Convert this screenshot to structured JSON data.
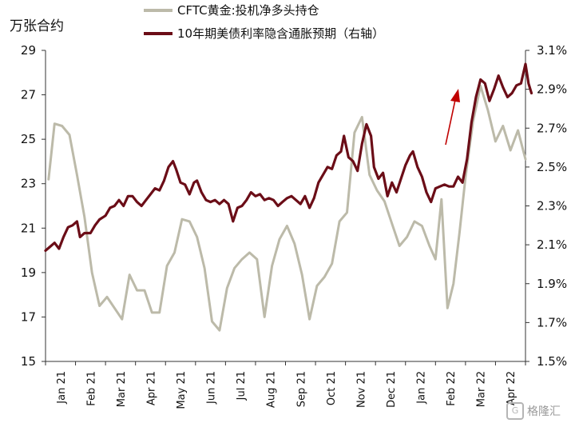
{
  "left_unit": "万张合约",
  "watermark": "格隆汇",
  "legend": [
    {
      "label": "CFTC黄金:投机净多头持仓",
      "color": "#bcbaa9"
    },
    {
      "label": "10年期美债利率隐含通胀预期（右轴）",
      "color": "#6b0d17"
    }
  ],
  "chart_data": {
    "type": "line",
    "x_categories": [
      "Jan 21",
      "Feb 21",
      "Mar 21",
      "Apr 21",
      "May 21",
      "Jun 21",
      "Jul 21",
      "Aug 21",
      "Sep 21",
      "Oct 21",
      "Nov 21",
      "Dec 21",
      "Jan 22",
      "Feb 22",
      "Mar 22",
      "Apr 22"
    ],
    "y_left": {
      "ticks": [
        "15",
        "17",
        "19",
        "21",
        "23",
        "25",
        "27",
        "29"
      ],
      "range": [
        15,
        29
      ]
    },
    "y_right": {
      "ticks": [
        "1.5%",
        "1.7%",
        "1.9%",
        "2.1%",
        "2.3%",
        "2.5%",
        "2.7%",
        "2.9%",
        "3.1%"
      ],
      "range": [
        1.5,
        3.1
      ]
    },
    "series": [
      {
        "name": "CFTC黄金:投机净多头持仓",
        "axis": "left",
        "color": "#bcbaa9",
        "points": [
          [
            0.1,
            23.2
          ],
          [
            0.3,
            25.7
          ],
          [
            0.55,
            25.6
          ],
          [
            0.8,
            25.2
          ],
          [
            1.05,
            23.4
          ],
          [
            1.3,
            21.5
          ],
          [
            1.55,
            19.0
          ],
          [
            1.8,
            17.5
          ],
          [
            2.05,
            17.9
          ],
          [
            2.3,
            17.4
          ],
          [
            2.55,
            16.9
          ],
          [
            2.8,
            18.9
          ],
          [
            3.05,
            18.2
          ],
          [
            3.3,
            18.2
          ],
          [
            3.55,
            17.2
          ],
          [
            3.8,
            17.2
          ],
          [
            4.05,
            19.3
          ],
          [
            4.3,
            19.9
          ],
          [
            4.55,
            21.4
          ],
          [
            4.8,
            21.3
          ],
          [
            5.05,
            20.6
          ],
          [
            5.3,
            19.2
          ],
          [
            5.55,
            16.8
          ],
          [
            5.8,
            16.4
          ],
          [
            6.05,
            18.3
          ],
          [
            6.3,
            19.2
          ],
          [
            6.55,
            19.6
          ],
          [
            6.8,
            19.9
          ],
          [
            7.05,
            19.6
          ],
          [
            7.3,
            17.0
          ],
          [
            7.55,
            19.3
          ],
          [
            7.8,
            20.5
          ],
          [
            8.05,
            21.1
          ],
          [
            8.3,
            20.3
          ],
          [
            8.55,
            18.9
          ],
          [
            8.8,
            16.9
          ],
          [
            9.05,
            18.4
          ],
          [
            9.3,
            18.8
          ],
          [
            9.55,
            19.4
          ],
          [
            9.8,
            21.3
          ],
          [
            10.05,
            21.7
          ],
          [
            10.3,
            25.3
          ],
          [
            10.55,
            26.0
          ],
          [
            10.8,
            23.4
          ],
          [
            11.05,
            22.7
          ],
          [
            11.3,
            22.2
          ],
          [
            11.55,
            21.2
          ],
          [
            11.8,
            20.2
          ],
          [
            12.05,
            20.6
          ],
          [
            12.3,
            21.3
          ],
          [
            12.55,
            21.1
          ],
          [
            12.8,
            20.2
          ],
          [
            13.0,
            19.6
          ],
          [
            13.2,
            22.3
          ],
          [
            13.4,
            17.4
          ],
          [
            13.6,
            18.5
          ],
          [
            13.8,
            20.8
          ],
          [
            14.0,
            23.3
          ],
          [
            14.25,
            25.8
          ],
          [
            14.5,
            27.4
          ],
          [
            14.75,
            26.3
          ],
          [
            15.0,
            24.9
          ],
          [
            15.25,
            25.6
          ],
          [
            15.5,
            24.5
          ],
          [
            15.75,
            25.4
          ],
          [
            16.0,
            24.1
          ]
        ]
      },
      {
        "name": "10年期美债利率隐含通胀预期（右轴）",
        "axis": "right",
        "color": "#6b0d17",
        "points": [
          [
            0.0,
            2.07
          ],
          [
            0.15,
            2.09
          ],
          [
            0.3,
            2.11
          ],
          [
            0.45,
            2.08
          ],
          [
            0.6,
            2.14
          ],
          [
            0.75,
            2.19
          ],
          [
            0.9,
            2.2
          ],
          [
            1.05,
            2.22
          ],
          [
            1.15,
            2.14
          ],
          [
            1.3,
            2.16
          ],
          [
            1.5,
            2.16
          ],
          [
            1.65,
            2.2
          ],
          [
            1.8,
            2.23
          ],
          [
            2.0,
            2.25
          ],
          [
            2.15,
            2.29
          ],
          [
            2.3,
            2.3
          ],
          [
            2.45,
            2.33
          ],
          [
            2.6,
            2.3
          ],
          [
            2.75,
            2.35
          ],
          [
            2.9,
            2.35
          ],
          [
            3.05,
            2.32
          ],
          [
            3.2,
            2.3
          ],
          [
            3.35,
            2.33
          ],
          [
            3.5,
            2.36
          ],
          [
            3.65,
            2.39
          ],
          [
            3.8,
            2.38
          ],
          [
            3.95,
            2.43
          ],
          [
            4.1,
            2.5
          ],
          [
            4.25,
            2.53
          ],
          [
            4.35,
            2.49
          ],
          [
            4.5,
            2.42
          ],
          [
            4.65,
            2.41
          ],
          [
            4.8,
            2.36
          ],
          [
            4.95,
            2.42
          ],
          [
            5.05,
            2.43
          ],
          [
            5.2,
            2.37
          ],
          [
            5.35,
            2.33
          ],
          [
            5.5,
            2.32
          ],
          [
            5.65,
            2.33
          ],
          [
            5.8,
            2.31
          ],
          [
            5.95,
            2.33
          ],
          [
            6.1,
            2.31
          ],
          [
            6.25,
            2.22
          ],
          [
            6.4,
            2.29
          ],
          [
            6.55,
            2.3
          ],
          [
            6.7,
            2.33
          ],
          [
            6.85,
            2.37
          ],
          [
            7.0,
            2.35
          ],
          [
            7.15,
            2.36
          ],
          [
            7.3,
            2.33
          ],
          [
            7.45,
            2.34
          ],
          [
            7.6,
            2.33
          ],
          [
            7.75,
            2.3
          ],
          [
            7.9,
            2.32
          ],
          [
            8.05,
            2.34
          ],
          [
            8.2,
            2.35
          ],
          [
            8.35,
            2.33
          ],
          [
            8.5,
            2.31
          ],
          [
            8.65,
            2.35
          ],
          [
            8.8,
            2.29
          ],
          [
            8.95,
            2.34
          ],
          [
            9.1,
            2.42
          ],
          [
            9.25,
            2.46
          ],
          [
            9.4,
            2.5
          ],
          [
            9.55,
            2.49
          ],
          [
            9.7,
            2.56
          ],
          [
            9.85,
            2.58
          ],
          [
            9.95,
            2.66
          ],
          [
            10.1,
            2.55
          ],
          [
            10.25,
            2.53
          ],
          [
            10.4,
            2.48
          ],
          [
            10.55,
            2.62
          ],
          [
            10.7,
            2.72
          ],
          [
            10.85,
            2.66
          ],
          [
            10.95,
            2.5
          ],
          [
            11.1,
            2.44
          ],
          [
            11.25,
            2.47
          ],
          [
            11.4,
            2.35
          ],
          [
            11.55,
            2.42
          ],
          [
            11.7,
            2.37
          ],
          [
            11.85,
            2.44
          ],
          [
            12.0,
            2.51
          ],
          [
            12.15,
            2.56
          ],
          [
            12.25,
            2.58
          ],
          [
            12.4,
            2.5
          ],
          [
            12.55,
            2.45
          ],
          [
            12.7,
            2.37
          ],
          [
            12.85,
            2.32
          ],
          [
            13.0,
            2.39
          ],
          [
            13.15,
            2.4
          ],
          [
            13.3,
            2.41
          ],
          [
            13.45,
            2.4
          ],
          [
            13.6,
            2.4
          ],
          [
            13.75,
            2.45
          ],
          [
            13.9,
            2.42
          ],
          [
            14.05,
            2.54
          ],
          [
            14.2,
            2.73
          ],
          [
            14.35,
            2.86
          ],
          [
            14.5,
            2.95
          ],
          [
            14.65,
            2.93
          ],
          [
            14.8,
            2.84
          ],
          [
            14.95,
            2.9
          ],
          [
            15.1,
            2.97
          ],
          [
            15.25,
            2.91
          ],
          [
            15.4,
            2.86
          ],
          [
            15.55,
            2.88
          ],
          [
            15.7,
            2.92
          ],
          [
            15.85,
            2.93
          ],
          [
            16.0,
            3.03
          ],
          [
            16.1,
            2.93
          ],
          [
            16.2,
            2.88
          ]
        ]
      }
    ],
    "annotation": "upward red arrow near Feb 22"
  }
}
